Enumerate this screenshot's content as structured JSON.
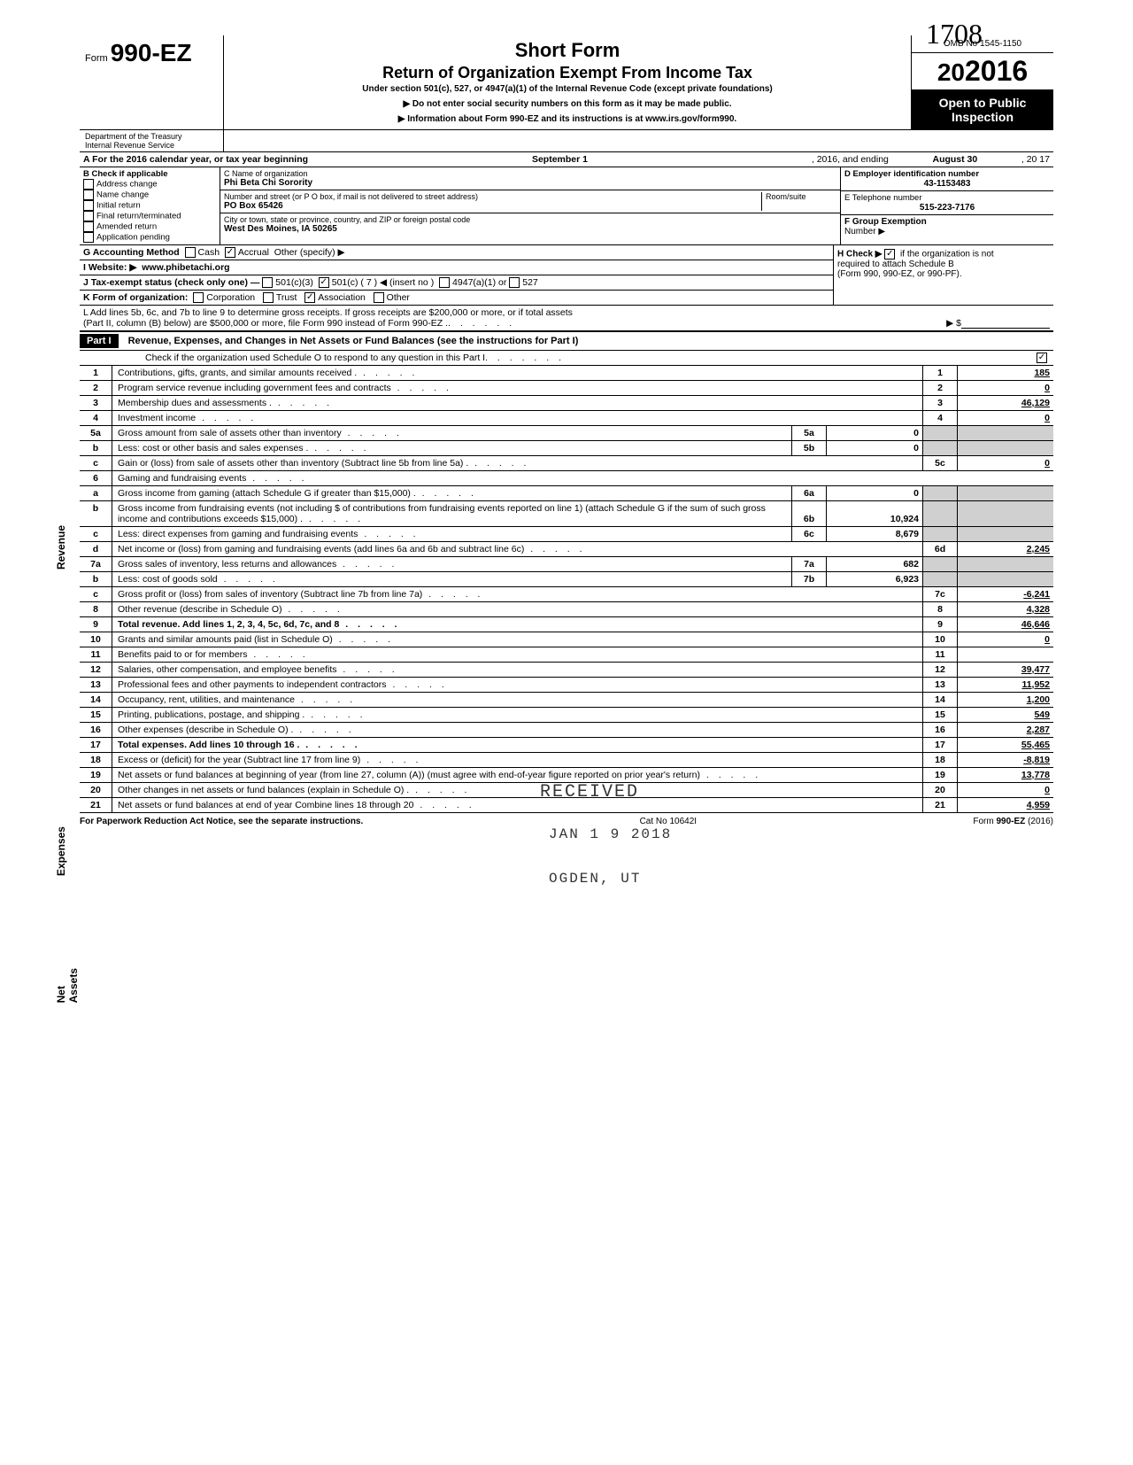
{
  "handwritten_top": "1708",
  "form": {
    "prefix": "Form",
    "number": "990-EZ",
    "title1": "Short Form",
    "title2": "Return of Organization Exempt From Income Tax",
    "subtitle": "Under section 501(c), 527, or 4947(a)(1) of the Internal Revenue Code (except private foundations)",
    "note1": "▶ Do not enter social security numbers on this form as it may be made public.",
    "note2": "▶ Information about Form 990-EZ and its instructions is at www.irs.gov/form990.",
    "dept1": "Department of the Treasury",
    "dept2": "Internal Revenue Service",
    "omb": "OMB No 1545-1150",
    "year": "2016",
    "open1": "Open to Public",
    "open2": "Inspection"
  },
  "lineA": {
    "text": "A  For the 2016 calendar year, or tax year beginning",
    "begin": "September 1",
    "mid": ", 2016, and ending",
    "end": "August 30",
    "yearend": ", 20  17"
  },
  "box_b": {
    "header": "B  Check if applicable",
    "items": [
      "Address change",
      "Name change",
      "Initial return",
      "Final return/terminated",
      "Amended return",
      "Application pending"
    ]
  },
  "box_c": {
    "label": "C  Name of organization",
    "name": "Phi Beta Chi Sorority",
    "addr_label": "Number and street (or P O  box, if mail is not delivered to street address)",
    "room_label": "Room/suite",
    "addr": "PO Box 65426",
    "city_label": "City or town, state or province, country, and ZIP or foreign postal code",
    "city": "West Des Moines, IA 50265"
  },
  "box_d": {
    "label": "D Employer identification number",
    "value": "43-1153483"
  },
  "box_e": {
    "label": "E  Telephone number",
    "value": "515-223-7176"
  },
  "box_f": {
    "label": "F  Group Exemption",
    "label2": "Number ▶"
  },
  "lineG": {
    "label": "G  Accounting Method",
    "cash": "Cash",
    "accrual": "Accrual",
    "other": "Other (specify) ▶"
  },
  "lineH": {
    "text": "H  Check ▶",
    "text2": "if the organization is not",
    "text3": "required to attach Schedule B",
    "text4": "(Form 990, 990-EZ, or 990-PF)."
  },
  "lineI": {
    "label": "I   Website: ▶",
    "value": "www.phibetachi.org"
  },
  "lineJ": {
    "label": "J  Tax-exempt status (check only one) —",
    "o1": "501(c)(3)",
    "o2": "501(c) (  7  ) ◀ (insert no )",
    "o3": "4947(a)(1) or",
    "o4": "527"
  },
  "lineK": {
    "label": "K  Form of organization:",
    "o1": "Corporation",
    "o2": "Trust",
    "o3": "Association",
    "o4": "Other"
  },
  "lineL": {
    "text1": "L  Add lines 5b, 6c, and 7b to line 9 to determine gross receipts. If gross receipts are $200,000 or more, or if total assets",
    "text2": "(Part II, column (B) below) are $500,000 or more, file Form 990 instead of Form 990-EZ .",
    "arrow": "▶  $"
  },
  "part1": {
    "label": "Part I",
    "title": "Revenue, Expenses, and Changes in Net Assets or Fund Balances (see the instructions for Part I)",
    "check_text": "Check if the organization used Schedule O to respond to any question in this Part I"
  },
  "sidelabels": {
    "revenue": "Revenue",
    "expenses": "Expenses",
    "netassets": "Net Assets"
  },
  "rows": [
    {
      "n": "1",
      "label": "Contributions, gifts, grants, and similar amounts received .",
      "box": "1",
      "amt": "185"
    },
    {
      "n": "2",
      "label": "Program service revenue including government fees and contracts",
      "box": "2",
      "amt": "0"
    },
    {
      "n": "3",
      "label": "Membership dues and assessments .",
      "box": "3",
      "amt": "46,129"
    },
    {
      "n": "4",
      "label": "Investment income",
      "box": "4",
      "amt": "0"
    },
    {
      "n": "5a",
      "label": "Gross amount from sale of assets other than inventory",
      "ibox": "5a",
      "iamt": "0"
    },
    {
      "n": "b",
      "label": "Less: cost or other basis and sales expenses .",
      "ibox": "5b",
      "iamt": "0"
    },
    {
      "n": "c",
      "label": "Gain or (loss) from sale of assets other than inventory (Subtract line 5b from line 5a) .",
      "box": "5c",
      "amt": "0"
    },
    {
      "n": "6",
      "label": "Gaming and fundraising events"
    },
    {
      "n": "a",
      "label": "Gross income from gaming (attach Schedule G if greater than $15,000) .",
      "ibox": "6a",
      "iamt": "0"
    },
    {
      "n": "b",
      "label": "Gross income from fundraising events (not including  $                       of contributions from fundraising events reported on line 1) (attach Schedule G if the sum of such gross income and contributions exceeds $15,000) .",
      "ibox": "6b",
      "iamt": "10,924"
    },
    {
      "n": "c",
      "label": "Less: direct expenses from gaming and fundraising events",
      "ibox": "6c",
      "iamt": "8,679"
    },
    {
      "n": "d",
      "label": "Net income or (loss) from gaming and fundraising events (add lines 6a and 6b and subtract line 6c)",
      "box": "6d",
      "amt": "2,245"
    },
    {
      "n": "7a",
      "label": "Gross sales of inventory, less returns and allowances",
      "ibox": "7a",
      "iamt": "682"
    },
    {
      "n": "b",
      "label": "Less: cost of goods sold",
      "ibox": "7b",
      "iamt": "6,923"
    },
    {
      "n": "c",
      "label": "Gross profit or (loss) from sales of inventory (Subtract line 7b from line 7a)",
      "box": "7c",
      "amt": "-6,241"
    },
    {
      "n": "8",
      "label": "Other revenue (describe in Schedule O)",
      "box": "8",
      "amt": "4,328"
    },
    {
      "n": "9",
      "label": "Total revenue. Add lines 1, 2, 3, 4, 5c, 6d, 7c, and 8",
      "box": "9",
      "amt": "46,646",
      "bold": true
    },
    {
      "n": "10",
      "label": "Grants and similar amounts paid (list in Schedule O)",
      "box": "10",
      "amt": "0"
    },
    {
      "n": "11",
      "label": "Benefits paid to or for members",
      "box": "11",
      "amt": ""
    },
    {
      "n": "12",
      "label": "Salaries, other compensation, and employee benefits",
      "box": "12",
      "amt": "39,477"
    },
    {
      "n": "13",
      "label": "Professional fees and other payments to independent contractors",
      "box": "13",
      "amt": "11,952"
    },
    {
      "n": "14",
      "label": "Occupancy, rent, utilities, and maintenance",
      "box": "14",
      "amt": "1,200"
    },
    {
      "n": "15",
      "label": "Printing, publications, postage, and shipping .",
      "box": "15",
      "amt": "549"
    },
    {
      "n": "16",
      "label": "Other expenses (describe in Schedule O) .",
      "box": "16",
      "amt": "2,287"
    },
    {
      "n": "17",
      "label": "Total expenses. Add lines 10 through 16 .",
      "box": "17",
      "amt": "55,465",
      "bold": true
    },
    {
      "n": "18",
      "label": "Excess or (deficit) for the year (Subtract line 17 from line 9)",
      "box": "18",
      "amt": "-8,819"
    },
    {
      "n": "19",
      "label": "Net assets or fund balances at beginning of year (from line 27, column (A)) (must agree with end-of-year figure reported on prior year's return)",
      "box": "19",
      "amt": "13,778"
    },
    {
      "n": "20",
      "label": "Other changes in net assets or fund balances (explain in Schedule O) .",
      "box": "20",
      "amt": "0"
    },
    {
      "n": "21",
      "label": "Net assets or fund balances at end of year  Combine lines 18 through 20",
      "box": "21",
      "amt": "4,959"
    }
  ],
  "stamps": {
    "received": "RECEIVED",
    "date": "JAN 1 9 2018",
    "city": "OGDEN, UT"
  },
  "footer": {
    "left": "For Paperwork Reduction Act Notice, see the separate instructions.",
    "mid": "Cat No 10642I",
    "right": "Form 990-EZ (2016)"
  }
}
